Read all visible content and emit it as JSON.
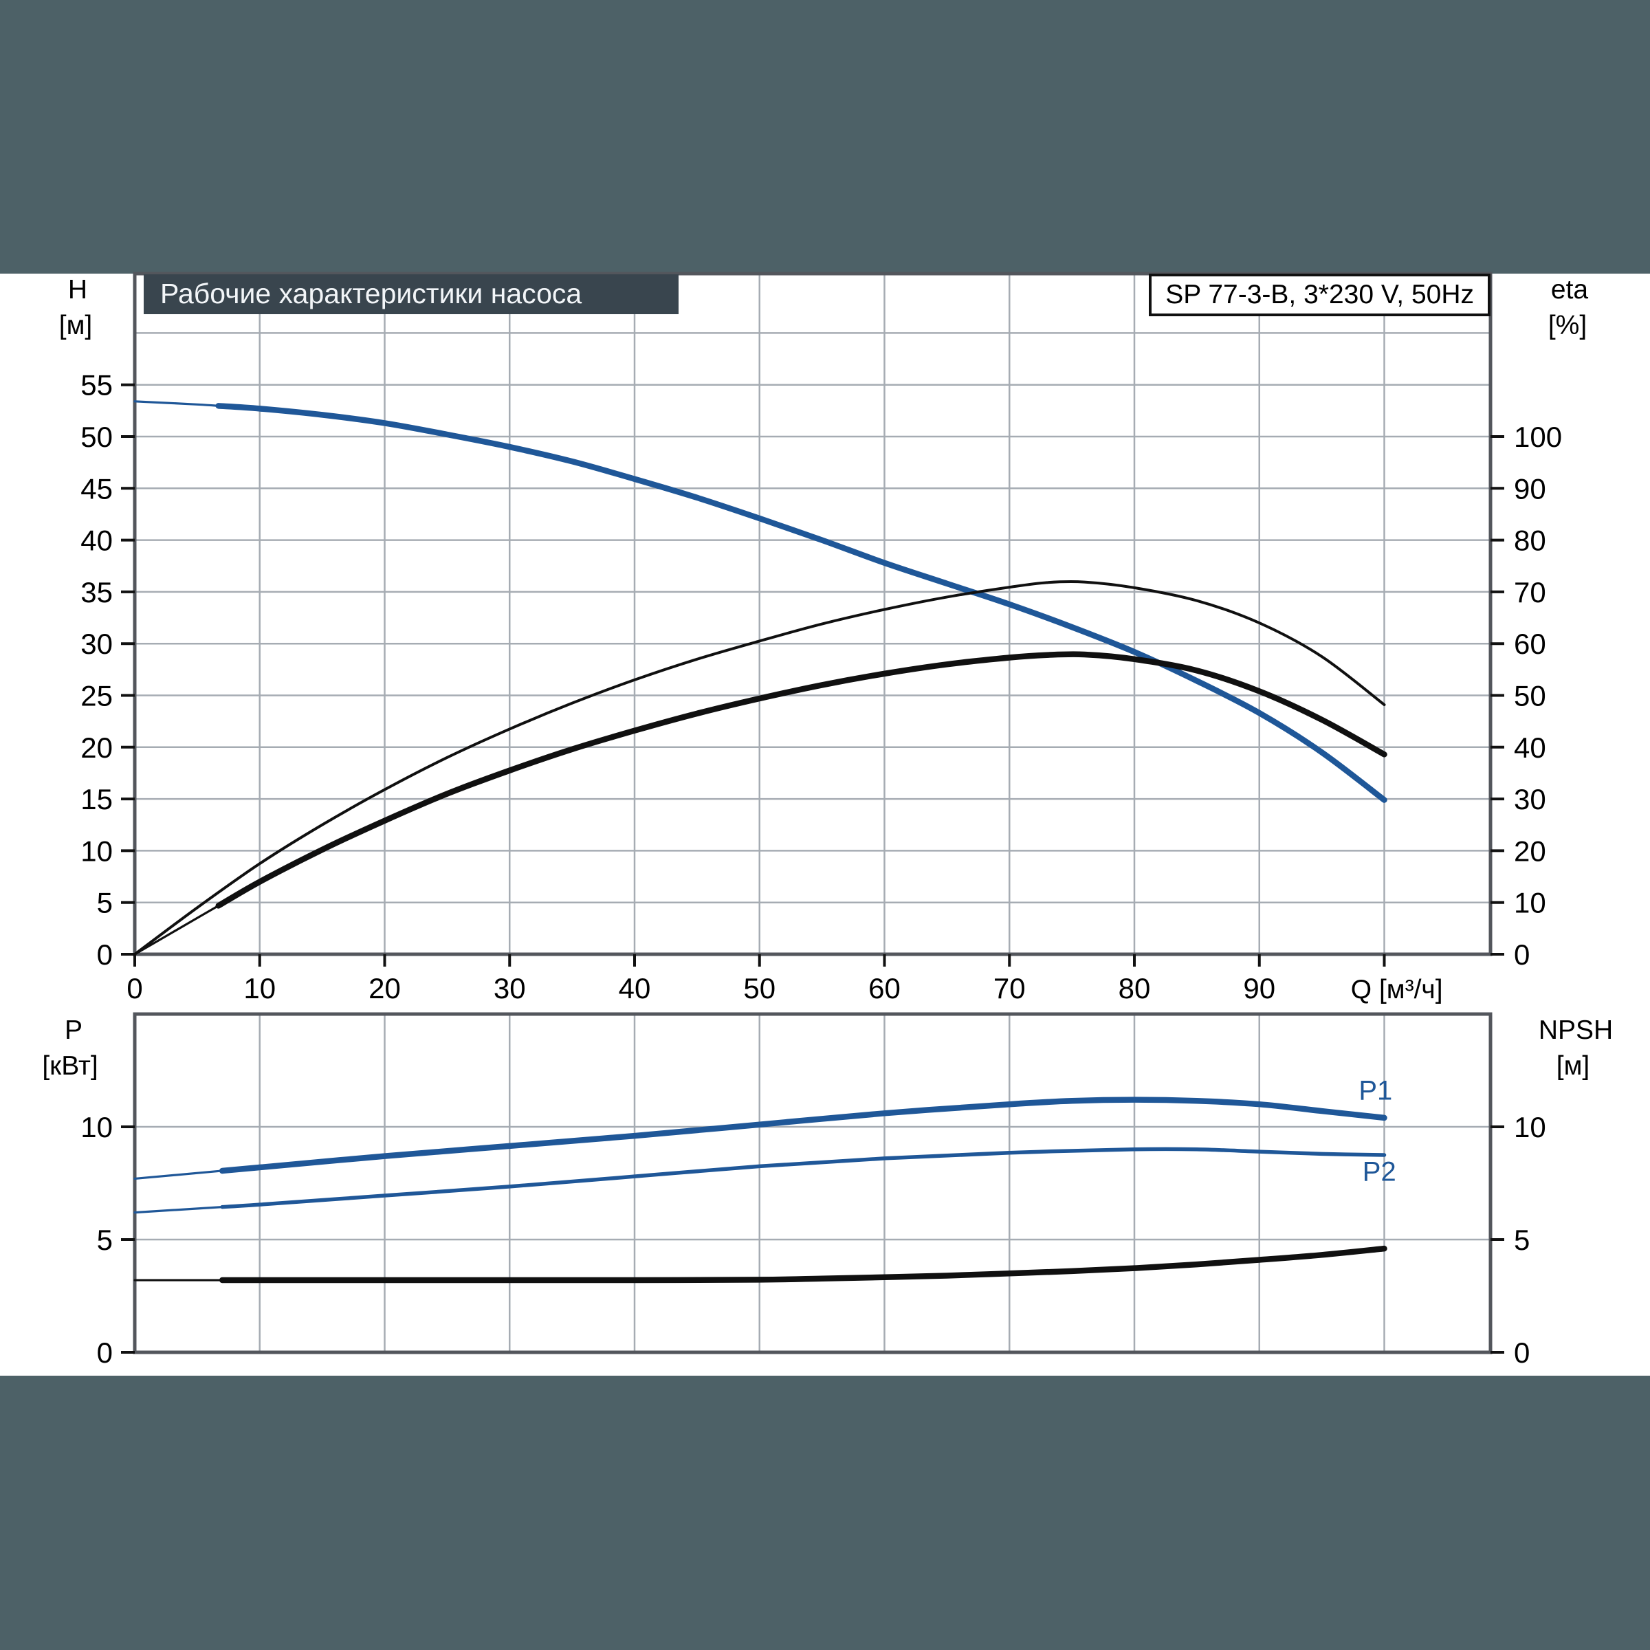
{
  "page": {
    "band_color": "#4d6167",
    "title_bar_color": "#39454e",
    "accent_blue": "#1f5798",
    "curve_black": "#101010",
    "grid_color": "#a6acb3",
    "frame_color": "#53565c"
  },
  "header": {
    "title": "Рабочие характеристики насоса",
    "model": "SP 77-3-B, 3*230 V, 50Hz"
  },
  "chart_data": [
    {
      "type": "line",
      "title": "Рабочие характеристики насоса",
      "x_axis": {
        "label": "Q [м³/ч]",
        "min": 0,
        "max": 108.5,
        "gridlines": [
          10,
          20,
          30,
          40,
          50,
          60,
          70,
          80,
          90,
          100
        ],
        "ticks": [
          0,
          10,
          20,
          30,
          40,
          50,
          60,
          70,
          80,
          90,
          100
        ],
        "tick_labels": [
          "0",
          "10",
          "20",
          "30",
          "40",
          "50",
          "60",
          "70",
          "80",
          "90"
        ]
      },
      "y_left": {
        "label": "H",
        "unit": "[м]",
        "min": 0,
        "max": 60.5,
        "ticks": [
          0,
          5,
          10,
          15,
          20,
          25,
          30,
          35,
          40,
          45,
          50,
          55
        ],
        "gridlines": [
          5,
          10,
          15,
          20,
          25,
          30,
          35,
          40,
          45,
          50,
          55,
          60
        ]
      },
      "y_right": {
        "label": "eta",
        "unit": "[%]",
        "min": 0,
        "max": 121,
        "ticks": [
          0,
          10,
          20,
          30,
          40,
          50,
          60,
          70,
          80,
          90,
          100
        ]
      },
      "series": [
        {
          "name": "H-curve",
          "axis": "left",
          "color": "blue",
          "style": "thick",
          "thin_until": 6.7,
          "points": [
            [
              0,
              53.4
            ],
            [
              5,
              53.1
            ],
            [
              10,
              52.7
            ],
            [
              15,
              52.1
            ],
            [
              20,
              51.3
            ],
            [
              25,
              50.2
            ],
            [
              30,
              49.0
            ],
            [
              35,
              47.6
            ],
            [
              40,
              45.9
            ],
            [
              45,
              44.1
            ],
            [
              50,
              42.1
            ],
            [
              55,
              40.0
            ],
            [
              60,
              37.8
            ],
            [
              65,
              35.8
            ],
            [
              70,
              33.8
            ],
            [
              75,
              31.6
            ],
            [
              80,
              29.2
            ],
            [
              85,
              26.4
            ],
            [
              90,
              23.3
            ],
            [
              95,
              19.5
            ],
            [
              100,
              14.9
            ]
          ]
        },
        {
          "name": "eta-pump",
          "axis": "right",
          "color": "black",
          "style": "thin",
          "points": [
            [
              0,
              0
            ],
            [
              5,
              9
            ],
            [
              10,
              17.5
            ],
            [
              15,
              25
            ],
            [
              20,
              31.8
            ],
            [
              25,
              38
            ],
            [
              30,
              43.5
            ],
            [
              35,
              48.5
            ],
            [
              40,
              53
            ],
            [
              45,
              57
            ],
            [
              50,
              60.5
            ],
            [
              55,
              63.8
            ],
            [
              60,
              66.6
            ],
            [
              65,
              69
            ],
            [
              70,
              70.9
            ],
            [
              73,
              71.8
            ],
            [
              76,
              71.9
            ],
            [
              80,
              70.8
            ],
            [
              85,
              68.3
            ],
            [
              90,
              64
            ],
            [
              95,
              57.5
            ],
            [
              100,
              48.2
            ]
          ]
        },
        {
          "name": "eta-total",
          "axis": "right",
          "color": "black",
          "style": "thick",
          "thin_until": 6.7,
          "points": [
            [
              0,
              0
            ],
            [
              5,
              7
            ],
            [
              10,
              14
            ],
            [
              15,
              20.2
            ],
            [
              20,
              25.8
            ],
            [
              25,
              31
            ],
            [
              30,
              35.5
            ],
            [
              35,
              39.6
            ],
            [
              40,
              43.2
            ],
            [
              45,
              46.5
            ],
            [
              50,
              49.4
            ],
            [
              55,
              52
            ],
            [
              60,
              54.2
            ],
            [
              65,
              56
            ],
            [
              70,
              57.3
            ],
            [
              73,
              57.8
            ],
            [
              76,
              57.9
            ],
            [
              80,
              57
            ],
            [
              85,
              54.8
            ],
            [
              90,
              50.8
            ],
            [
              95,
              45.3
            ],
            [
              100,
              38.6
            ]
          ]
        }
      ]
    },
    {
      "type": "line",
      "x_axis": {
        "min": 0,
        "max": 108.5,
        "gridlines": [
          10,
          20,
          30,
          40,
          50,
          60,
          70,
          80,
          90,
          100
        ],
        "ticks": [],
        "tick_labels": []
      },
      "y_left": {
        "label": "P",
        "unit": "[кВт]",
        "min": 0,
        "max": 15,
        "ticks": [
          0,
          5,
          10
        ],
        "gridlines": [
          5,
          10
        ]
      },
      "y_right": {
        "label": "NPSH",
        "unit": "[м]",
        "min": 0,
        "max": 15,
        "ticks": [
          0,
          5,
          10
        ]
      },
      "series": [
        {
          "name": "P1",
          "axis": "left",
          "color": "blue",
          "style": "thick",
          "thin_until": 7,
          "label": {
            "text": "P1",
            "q": 99.3,
            "v": 11.6
          },
          "points": [
            [
              0,
              7.7
            ],
            [
              10,
              8.2
            ],
            [
              20,
              8.7
            ],
            [
              30,
              9.15
            ],
            [
              40,
              9.6
            ],
            [
              50,
              10.1
            ],
            [
              60,
              10.6
            ],
            [
              70,
              11.0
            ],
            [
              75,
              11.15
            ],
            [
              80,
              11.2
            ],
            [
              85,
              11.15
            ],
            [
              90,
              11.0
            ],
            [
              95,
              10.7
            ],
            [
              100,
              10.4
            ]
          ]
        },
        {
          "name": "P2",
          "axis": "left",
          "color": "blue",
          "style": "medium",
          "thin_until": 7,
          "label": {
            "text": "P2",
            "q": 99.6,
            "v": 8.0
          },
          "points": [
            [
              0,
              6.2
            ],
            [
              10,
              6.55
            ],
            [
              20,
              6.95
            ],
            [
              30,
              7.35
            ],
            [
              40,
              7.8
            ],
            [
              50,
              8.25
            ],
            [
              60,
              8.6
            ],
            [
              70,
              8.85
            ],
            [
              80,
              9.0
            ],
            [
              85,
              9.0
            ],
            [
              90,
              8.9
            ],
            [
              95,
              8.8
            ],
            [
              100,
              8.75
            ]
          ]
        },
        {
          "name": "NPSH",
          "axis": "left",
          "color": "black",
          "style": "thick",
          "thin_until": 7,
          "points": [
            [
              0,
              3.2
            ],
            [
              10,
              3.2
            ],
            [
              20,
              3.2
            ],
            [
              30,
              3.2
            ],
            [
              40,
              3.2
            ],
            [
              50,
              3.22
            ],
            [
              55,
              3.27
            ],
            [
              60,
              3.33
            ],
            [
              65,
              3.4
            ],
            [
              70,
              3.5
            ],
            [
              75,
              3.6
            ],
            [
              80,
              3.73
            ],
            [
              85,
              3.9
            ],
            [
              90,
              4.1
            ],
            [
              95,
              4.32
            ],
            [
              100,
              4.6
            ]
          ]
        }
      ]
    }
  ]
}
